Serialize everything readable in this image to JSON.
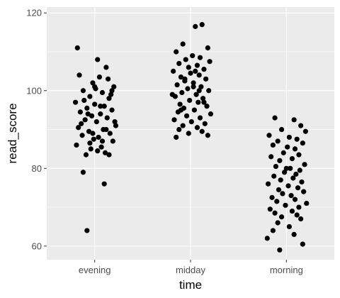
{
  "chart_data": {
    "type": "scatter",
    "jitter": true,
    "xlabel": "time",
    "ylabel": "read_score",
    "categories": [
      "evening",
      "midday",
      "morning"
    ],
    "ylim": [
      56.5,
      121.5
    ],
    "y_ticks": [
      60,
      80,
      100,
      120
    ],
    "grid": true,
    "panel_color": "#ebebeb",
    "grid_color": "#ffffff",
    "point_color": "#000000",
    "points": [
      {
        "group": "evening",
        "offsets": [
          0.03,
          -0.18,
          0.12,
          0.05,
          -0.02,
          0.2,
          -0.12,
          0.08,
          -0.05,
          0.15,
          -0.2,
          0.0,
          0.1,
          -0.08,
          0.18,
          -0.15,
          0.06,
          -0.03,
          0.13,
          -0.1,
          0.02,
          0.22,
          -0.17,
          0.09,
          -0.06,
          0.16,
          -0.13,
          0.04,
          -0.01,
          0.19,
          -0.19,
          0.07,
          -0.04,
          0.11,
          -0.09,
          0.14,
          -0.16,
          0.01,
          0.17,
          -0.11,
          0.06,
          -0.07,
          0.21,
          -0.14,
          0.12,
          -0.02,
          0.08,
          -0.05,
          0.03,
          0.15,
          -0.12,
          0.1,
          -0.08,
          0.0,
          0.18
        ],
        "values": [
          108,
          111,
          106,
          103.5,
          102,
          101,
          100,
          99.5,
          98.5,
          98,
          97,
          96.5,
          96,
          95.5,
          95,
          94.5,
          94,
          93.5,
          93,
          92.5,
          92,
          91,
          90.5,
          90,
          89.5,
          89,
          88.5,
          88,
          87.5,
          87,
          86,
          85.5,
          85,
          84,
          83.5,
          103,
          104,
          100.5,
          99,
          97.5,
          96,
          94,
          92,
          91.5,
          90,
          89,
          87,
          86.5,
          84.5,
          83.5,
          79,
          76,
          64,
          101,
          100
        ]
      },
      {
        "group": "midday",
        "offsets": [
          0.05,
          0.12,
          -0.08,
          0.18,
          -0.15,
          0.02,
          0.1,
          -0.05,
          0.2,
          -0.12,
          0.07,
          -0.02,
          0.14,
          -0.18,
          0.0,
          0.09,
          -0.1,
          0.16,
          -0.06,
          0.03,
          -0.14,
          0.11,
          -0.03,
          0.19,
          -0.09,
          0.06,
          -0.16,
          0.13,
          -0.01,
          0.08,
          -0.11,
          0.17,
          -0.07,
          0.04,
          -0.13,
          0.21,
          -0.04,
          0.1,
          -0.17,
          0.01,
          0.15,
          -0.08,
          0.07,
          -0.12,
          0.12,
          -0.02,
          0.18,
          -0.15,
          0.05,
          -0.06,
          0.09,
          -0.19,
          0.14,
          -0.1,
          0.03
        ],
        "values": [
          116.5,
          117,
          112,
          111,
          110,
          109,
          108.5,
          108,
          107.5,
          107,
          106.5,
          106,
          105.5,
          105,
          104.5,
          104,
          103.5,
          103,
          102.5,
          102,
          101.5,
          101,
          100.5,
          100,
          99.5,
          99,
          98.5,
          98,
          97.5,
          97,
          96.5,
          96,
          95.5,
          95,
          94.5,
          94,
          93.5,
          93,
          92.5,
          92,
          91.5,
          91,
          90.5,
          90,
          89.5,
          89,
          88.5,
          88,
          105,
          103,
          100,
          99,
          97,
          95,
          101
        ]
      },
      {
        "group": "morning",
        "offsets": [
          -0.12,
          0.08,
          0.15,
          -0.05,
          0.2,
          -0.18,
          0.03,
          0.11,
          -0.09,
          0.17,
          -0.14,
          0.01,
          0.09,
          -0.03,
          0.13,
          -0.16,
          0.06,
          -0.07,
          0.19,
          -0.11,
          0.04,
          0.14,
          -0.02,
          0.1,
          -0.13,
          0.07,
          -0.06,
          0.16,
          -0.19,
          0.02,
          0.12,
          -0.08,
          0.18,
          -0.04,
          0.05,
          -0.15,
          0.09,
          -0.1,
          0.21,
          -0.01,
          0.13,
          -0.17,
          0.06,
          -0.12,
          0.11,
          -0.05,
          0.15,
          -0.09,
          0.03,
          -0.14,
          0.08,
          -0.2,
          0.17,
          -0.07,
          0.0
        ],
        "values": [
          93,
          92.5,
          91,
          90,
          89.5,
          88.5,
          88,
          87.5,
          87,
          86.5,
          86,
          85.5,
          85,
          84,
          83.5,
          83,
          82.5,
          82,
          81,
          80.5,
          80,
          79.5,
          79,
          78.5,
          78,
          77.5,
          77,
          76.5,
          76,
          75.5,
          75,
          74.5,
          74,
          73.5,
          73,
          72.5,
          72,
          71.5,
          71,
          70.5,
          70,
          69.5,
          69,
          68.5,
          68,
          67.5,
          67,
          66,
          65,
          64,
          63,
          62,
          60.5,
          59,
          80
        ]
      }
    ]
  }
}
